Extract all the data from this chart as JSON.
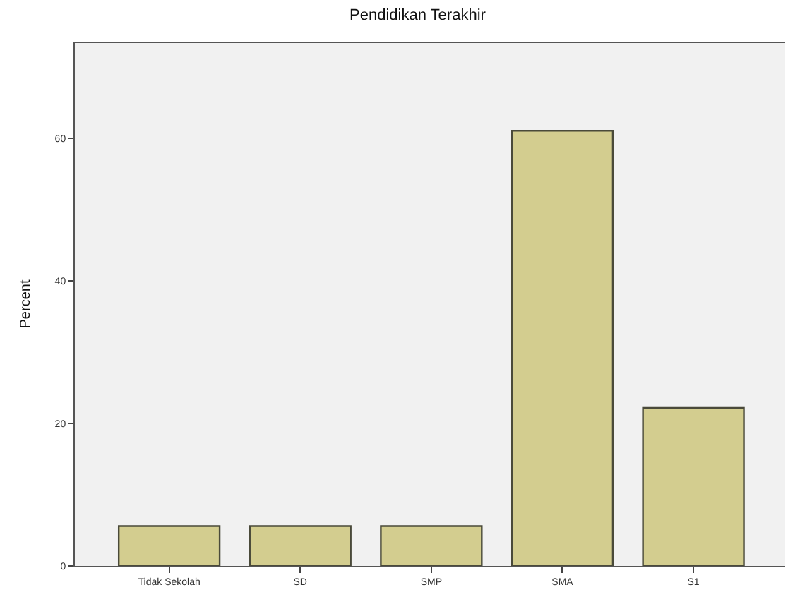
{
  "chart_data": {
    "type": "bar",
    "title": "Pendidikan Terakhir",
    "ylabel": "Percent",
    "categories": [
      "Tidak Sekolah",
      "SD",
      "SMP",
      "SMA",
      "S1"
    ],
    "values": [
      5.6,
      5.6,
      5.6,
      61.1,
      22.2
    ],
    "color": "#d3cd8f",
    "ylim": [
      0,
      73.5
    ],
    "yticks": [
      0,
      20,
      40,
      60
    ],
    "grid": false
  }
}
